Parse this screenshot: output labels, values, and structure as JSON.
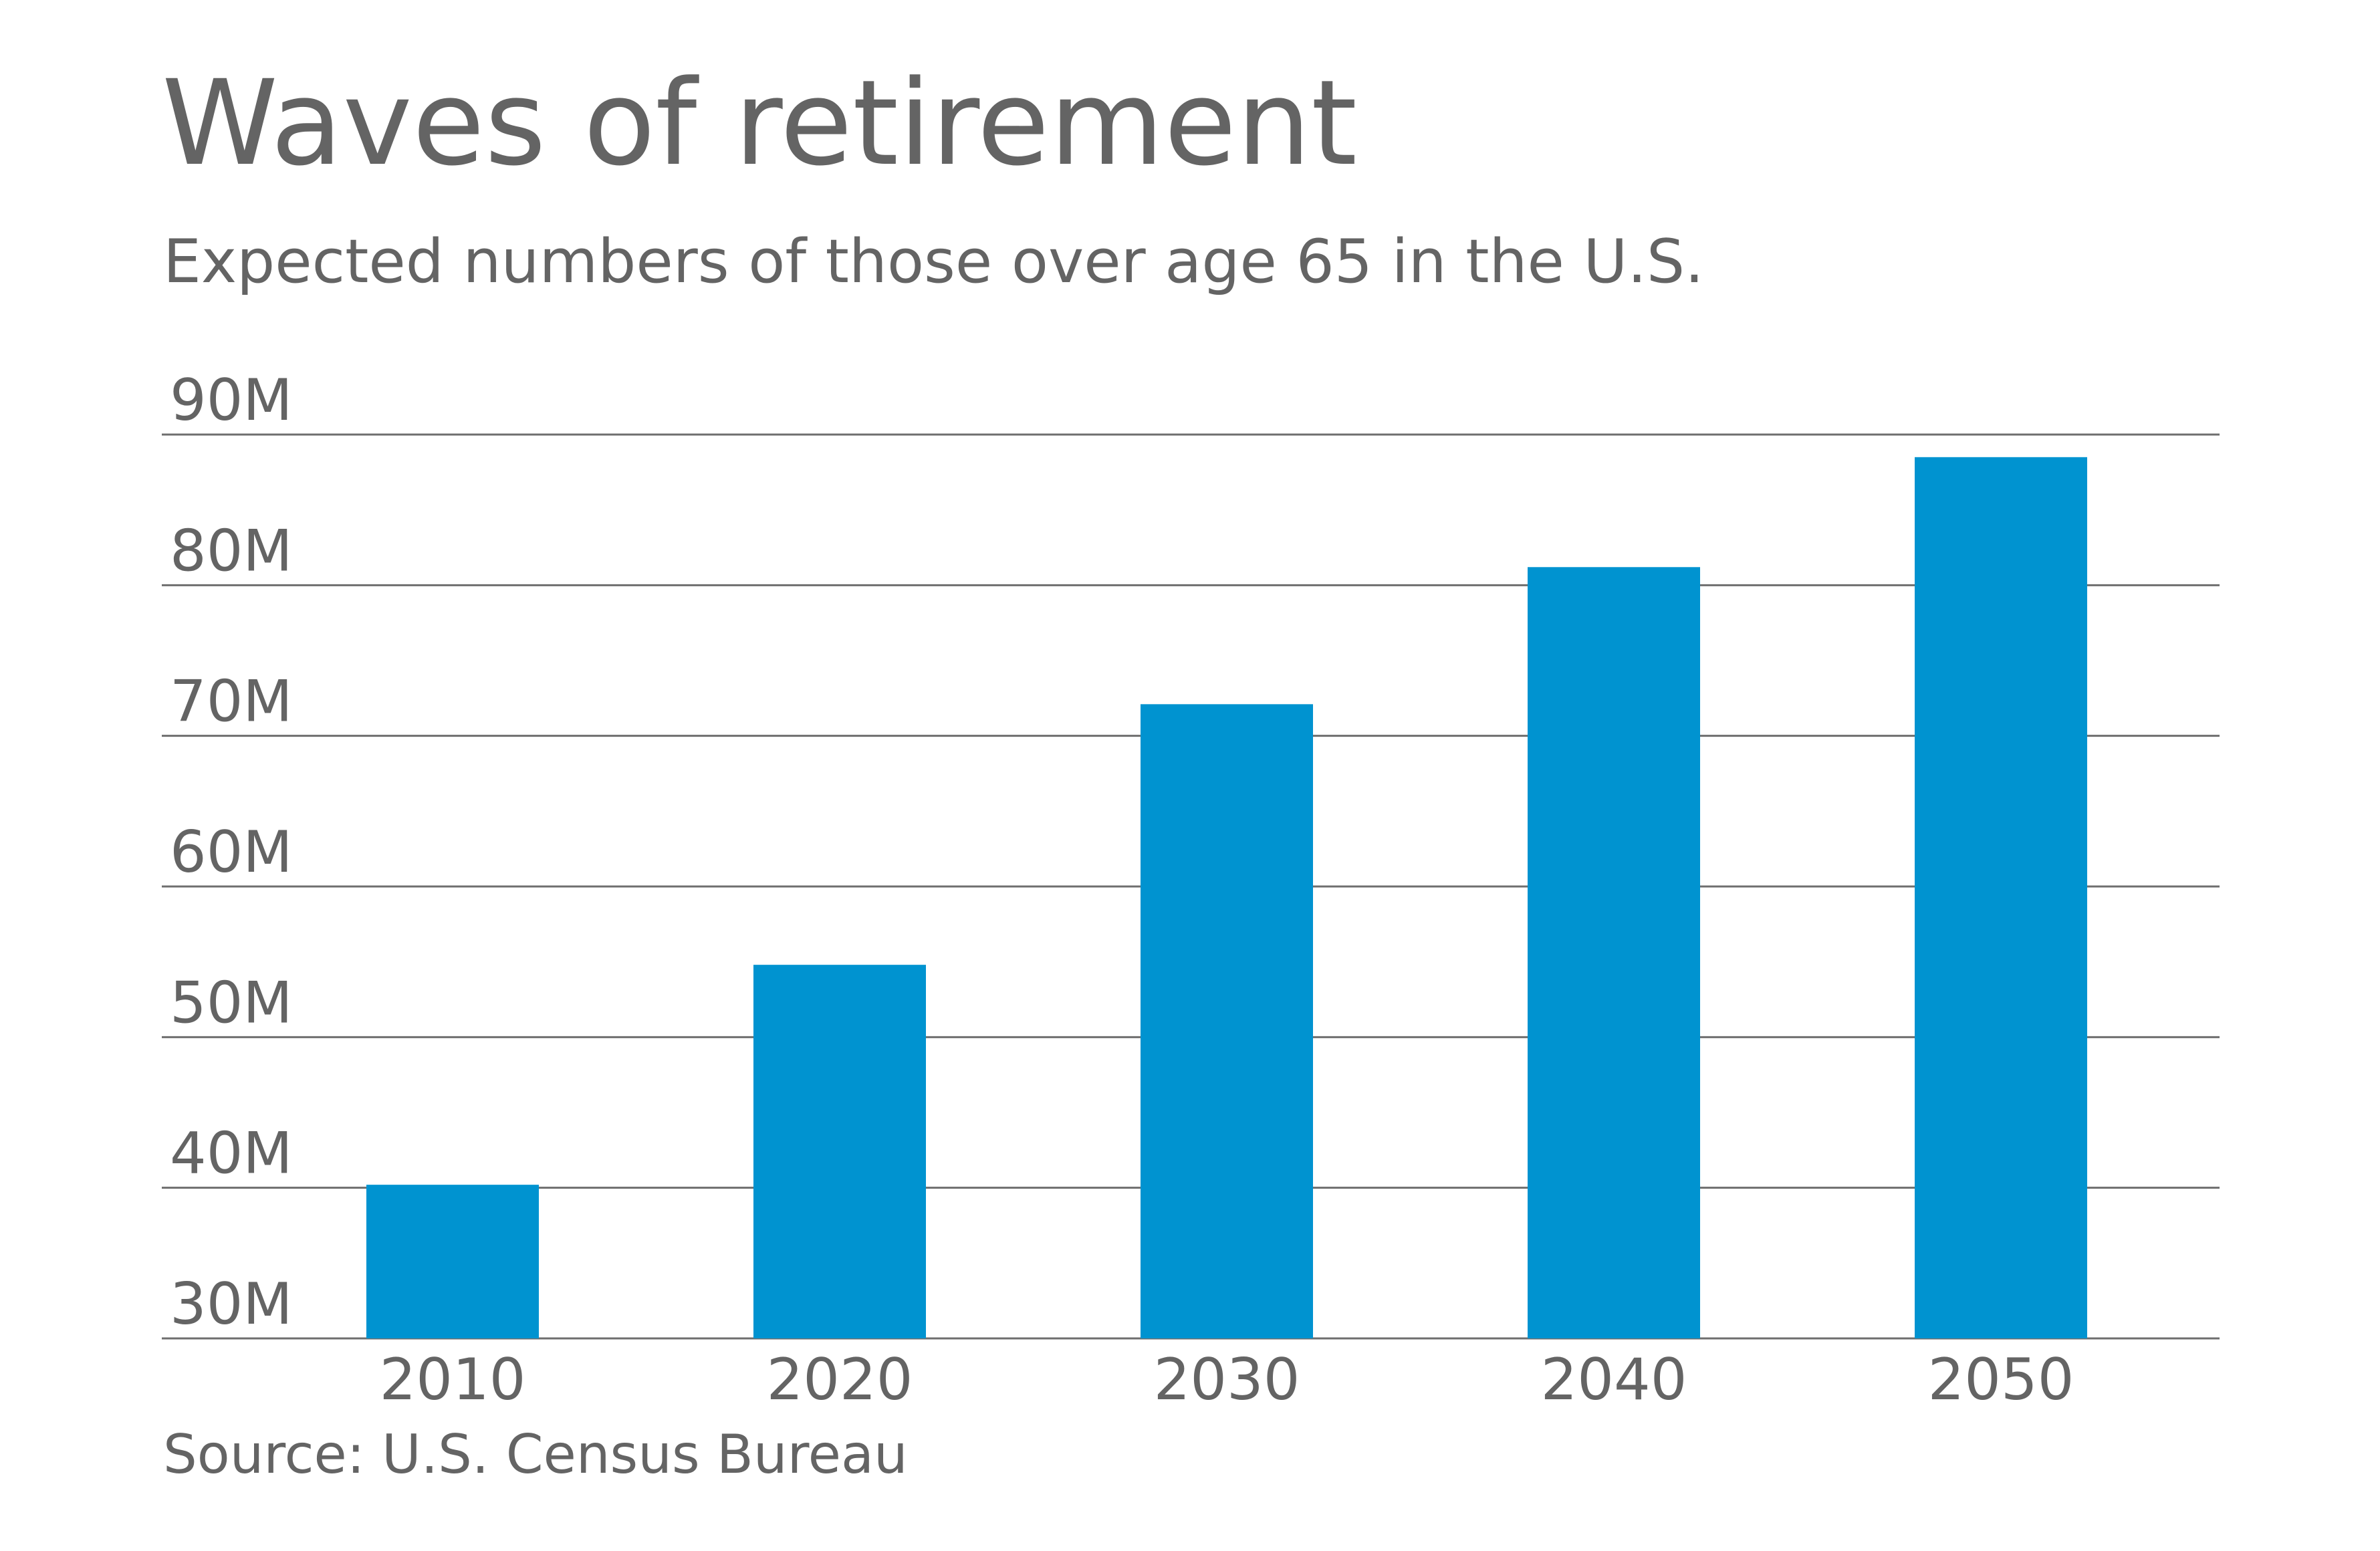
{
  "chart_data": {
    "type": "bar",
    "title": "Waves of retirement",
    "subtitle": "Expected numbers of those over age 65 in the U.S.",
    "source": "Source: U.S. Census Bureau",
    "xlabel": "",
    "ylabel": "",
    "categories": [
      "2010",
      "2020",
      "2030",
      "2040",
      "2050"
    ],
    "values": [
      40.2,
      54.8,
      72.1,
      81.2,
      88.5
    ],
    "ylim": [
      30,
      90
    ],
    "yticks": [
      30,
      40,
      50,
      60,
      70,
      80,
      90
    ],
    "ytick_labels": [
      "30M",
      "40M",
      "50M",
      "60M",
      "70M",
      "80M",
      "90M"
    ],
    "grid": true,
    "legend": "none",
    "bar_color": "#0093d0",
    "gridline_color": "#6e6e6e",
    "text_color": "#646464"
  }
}
